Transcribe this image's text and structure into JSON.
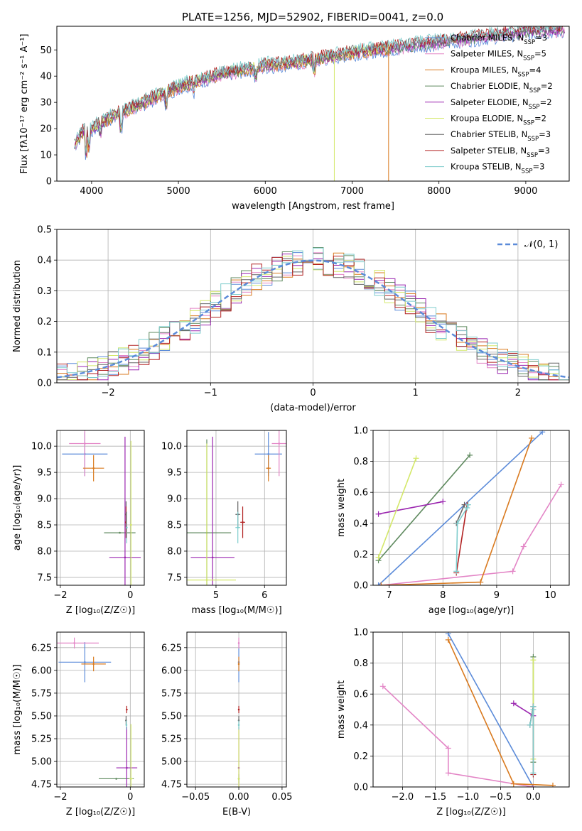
{
  "figure_title": "PLATE=1256, MJD=52902, FIBERID=0041, z=0.0",
  "series_colors": [
    "#5b8bd9",
    "#e385c6",
    "#d97a1f",
    "#5f8a5f",
    "#9b27b0",
    "#d4e86a",
    "#666666",
    "#b22222",
    "#7fcdcd"
  ],
  "chart_data": [
    {
      "id": "spectrum",
      "type": "line",
      "title": "PLATE=1256, MJD=52902, FIBERID=0041, z=0.0",
      "xlabel": "wavelength [Angstrom, rest frame]",
      "ylabel": "Flux [fλ10⁻¹⁷ erg cm⁻² s⁻¹ A⁻¹]",
      "xlim": [
        3600,
        9500
      ],
      "ylim": [
        0,
        59
      ],
      "xticks": [
        "4000",
        "5000",
        "6000",
        "7000",
        "8000",
        "9000"
      ],
      "yticks": [
        "0",
        "10",
        "20",
        "30",
        "40",
        "50"
      ],
      "grid": false,
      "legend_position": "upper-right",
      "legend": [
        "Chabrier MILES, N_SSP=3",
        "Salpeter MILES, N_SSP=5",
        "Kroupa MILES, N_SSP=4",
        "Chabrier ELODIE, N_SSP=2",
        "Salpeter ELODIE, N_SSP=2",
        "Kroupa ELODIE, N_SSP=2",
        "Chabrier STELIB, N_SSP=3",
        "Salpeter STELIB, N_SSP=3",
        "Kroupa STELIB, N_SSP=3"
      ],
      "legend_labels": [
        "Chabrier MILES, N",
        "Salpeter MILES, N",
        "Kroupa MILES, N",
        "Chabrier ELODIE, N",
        "Salpeter ELODIE, N",
        "Kroupa ELODIE, N",
        "Chabrier STELIB, N",
        "Salpeter STELIB, N",
        "Kroupa STELIB, N"
      ],
      "legend_counts": [
        "=3",
        "=5",
        "=4",
        "=2",
        "=2",
        "=2",
        "=3",
        "=3",
        "=3"
      ],
      "legend_subscript": "SSP",
      "continuum": {
        "x": [
          3800,
          3900,
          4000,
          4200,
          4400,
          4600,
          4800,
          5000,
          5200,
          5500,
          6000,
          6500,
          7000,
          7500,
          8000,
          8500,
          9000,
          9500
        ],
        "y": [
          14,
          19,
          20,
          24,
          27,
          30,
          33,
          36,
          38,
          41,
          44,
          46,
          49,
          51,
          53,
          55,
          57,
          58
        ]
      }
    },
    {
      "id": "residuals",
      "type": "histogram",
      "xlabel": "(data-model)/error",
      "ylabel": "Normed distribution",
      "xlim": [
        -2.5,
        2.5
      ],
      "ylim": [
        0,
        0.5
      ],
      "xticks": [
        "−2",
        "−1",
        "0",
        "1",
        "2"
      ],
      "yticks": [
        "0.0",
        "0.1",
        "0.2",
        "0.3",
        "0.4",
        "0.5"
      ],
      "grid": true,
      "legend_position": "upper-right",
      "legend": [
        "𝒩(0, 1)"
      ],
      "bin_width": 0.1
    },
    {
      "id": "age-vs-Z",
      "type": "scatter",
      "xlabel": "Z [log₁₀(Z/Z☉)]",
      "ylabel": "age  [log₁₀(age/yr)]",
      "xlim": [
        -2.1,
        0.4
      ],
      "ylim": [
        7.35,
        10.3
      ],
      "xticks": [
        "−2",
        "0"
      ],
      "yticks": [
        "7.5",
        "8.0",
        "8.5",
        "9.0",
        "9.5",
        "10.0"
      ],
      "grid": true,
      "points": [
        {
          "series": 0,
          "x": -1.3,
          "y": 9.85,
          "xerr": 0.65,
          "yerr": 0.42
        },
        {
          "series": 1,
          "x": -1.3,
          "y": 10.05,
          "xerr": 0.45,
          "yerr": 0.62
        },
        {
          "series": 2,
          "x": -1.05,
          "y": 9.58,
          "xerr": 0.3,
          "yerr": 0.25
        },
        {
          "series": 3,
          "x": -0.3,
          "y": 8.35,
          "xerr": 0.45,
          "yerr": 0
        },
        {
          "series": 4,
          "x": -0.15,
          "y": 7.88,
          "xerr": 0.45,
          "yerr": 2.3
        },
        {
          "series": 5,
          "x": 0.02,
          "y": 8.5,
          "xerr": 0.03,
          "yerr": 1.6
        },
        {
          "series": 6,
          "x": -0.12,
          "y": 8.7,
          "xerr": 0.02,
          "yerr": 0.25
        },
        {
          "series": 7,
          "x": -0.12,
          "y": 8.55,
          "xerr": 0.02,
          "yerr": 0.3
        },
        {
          "series": 8,
          "x": -0.1,
          "y": 8.45,
          "xerr": 0.02,
          "yerr": 0.3
        }
      ]
    },
    {
      "id": "age-vs-mass",
      "type": "scatter",
      "xlabel": "mass [log₁₀(M/M☉)]",
      "ylabel": "",
      "xlim": [
        4.4,
        6.45
      ],
      "ylim": [
        7.35,
        10.3
      ],
      "xticks": [
        "4",
        "5",
        "6"
      ],
      "yticks": [
        "7.5",
        "8.0",
        "8.5",
        "9.0",
        "9.5",
        "10.0"
      ],
      "grid": true,
      "points": [
        {
          "series": 0,
          "x": 6.08,
          "y": 9.85,
          "xerr": 0.28,
          "yerr": 0.42
        },
        {
          "series": 1,
          "x": 6.3,
          "y": 10.05,
          "xerr": 0.15,
          "yerr": 0.62
        },
        {
          "series": 2,
          "x": 6.08,
          "y": 9.58,
          "xerr": 0.05,
          "yerr": 0.25
        },
        {
          "series": 3,
          "x": 4.81,
          "y": 8.35,
          "xerr": 0.5,
          "yerr": 1.78
        },
        {
          "series": 4,
          "x": 4.93,
          "y": 7.88,
          "xerr": 0.45,
          "yerr": 2.3
        },
        {
          "series": 5,
          "x": 4.81,
          "y": 7.45,
          "xerr": 0.6,
          "yerr": 2.6
        },
        {
          "series": 6,
          "x": 5.45,
          "y": 8.7,
          "xerr": 0.05,
          "yerr": 0.25
        },
        {
          "series": 7,
          "x": 5.55,
          "y": 8.55,
          "xerr": 0.05,
          "yerr": 0.3
        },
        {
          "series": 8,
          "x": 5.45,
          "y": 8.45,
          "xerr": 0.05,
          "yerr": 0.3
        }
      ]
    },
    {
      "id": "weight-vs-age",
      "type": "line",
      "xlabel": "age  [log₁₀(age/yr)]",
      "ylabel": "mass weight",
      "xlim": [
        6.7,
        10.35
      ],
      "ylim": [
        0,
        1
      ],
      "xticks": [
        "7",
        "8",
        "9",
        "10"
      ],
      "yticks": [
        "0.0",
        "0.2",
        "0.4",
        "0.6",
        "0.8",
        "1.0"
      ],
      "grid": true,
      "series": [
        {
          "series": 0,
          "x": [
            6.8,
            9.85
          ],
          "y": [
            0.0,
            0.99
          ]
        },
        {
          "series": 1,
          "x": [
            6.85,
            9.3,
            9.5,
            10.2
          ],
          "y": [
            0.0,
            0.09,
            0.25,
            0.65
          ]
        },
        {
          "series": 2,
          "x": [
            6.85,
            8.7,
            9.65
          ],
          "y": [
            0.0,
            0.02,
            0.95
          ]
        },
        {
          "series": 3,
          "x": [
            6.8,
            8.5
          ],
          "y": [
            0.16,
            0.84
          ]
        },
        {
          "series": 4,
          "x": [
            6.8,
            8.0
          ],
          "y": [
            0.46,
            0.54
          ]
        },
        {
          "series": 5,
          "x": [
            6.8,
            7.5
          ],
          "y": [
            0.18,
            0.82
          ]
        },
        {
          "series": 6,
          "x": [
            8.25,
            8.4
          ],
          "y": [
            0.4,
            0.52
          ]
        },
        {
          "series": 7,
          "x": [
            8.25,
            8.45
          ],
          "y": [
            0.08,
            0.52
          ]
        },
        {
          "series": 8,
          "x": [
            8.25,
            8.27,
            8.45,
            8.47
          ],
          "y": [
            0.09,
            0.4,
            0.5,
            0.52
          ]
        }
      ]
    },
    {
      "id": "mass-vs-Z",
      "type": "scatter",
      "xlabel": "Z [log₁₀(Z/Z☉)]",
      "ylabel": "mass [log₁₀(M/M☉)]",
      "xlim": [
        -2.1,
        0.4
      ],
      "ylim": [
        4.72,
        6.42
      ],
      "xticks": [
        "−2",
        "0"
      ],
      "yticks": [
        "4.75",
        "5.00",
        "5.25",
        "5.50",
        "5.75",
        "6.00",
        "6.25"
      ],
      "grid": true,
      "points": [
        {
          "series": 0,
          "x": -1.3,
          "y": 6.09,
          "xerr": 0.75,
          "yerr": 0.22
        },
        {
          "series": 1,
          "x": -1.6,
          "y": 6.3,
          "xerr": 0.7,
          "yerr": 0.06
        },
        {
          "series": 2,
          "x": -1.05,
          "y": 6.07,
          "xerr": 0.35,
          "yerr": 0.08
        },
        {
          "series": 3,
          "x": -0.4,
          "y": 4.81,
          "xerr": 0.5,
          "yerr": 0
        },
        {
          "series": 4,
          "x": -0.1,
          "y": 4.93,
          "xerr": 0.3,
          "yerr": 0.45
        },
        {
          "series": 5,
          "x": 0.02,
          "y": 4.81,
          "xerr": 0.05,
          "yerr": 0.6
        },
        {
          "series": 6,
          "x": -0.12,
          "y": 5.45,
          "xerr": 0.02,
          "yerr": 0.05
        },
        {
          "series": 7,
          "x": -0.1,
          "y": 5.57,
          "xerr": 0.02,
          "yerr": 0.04
        },
        {
          "series": 8,
          "x": -0.11,
          "y": 5.4,
          "xerr": 0.02,
          "yerr": 0.05
        }
      ]
    },
    {
      "id": "mass-vs-ebv",
      "type": "scatter",
      "xlabel": "E(B-V)",
      "ylabel": "",
      "xlim": [
        -0.06,
        0.055
      ],
      "ylim": [
        4.72,
        6.42
      ],
      "xticks": [
        "−0.05",
        "0.00",
        "0.05"
      ],
      "yticks": [
        "4.75",
        "5.00",
        "5.25",
        "5.50",
        "5.75",
        "6.00",
        "6.25"
      ],
      "grid": true,
      "points": [
        {
          "series": 0,
          "x": 0,
          "y": 6.09,
          "xerr": 0,
          "yerr": 0.22
        },
        {
          "series": 1,
          "x": 0,
          "y": 6.3,
          "xerr": 0,
          "yerr": 0.06
        },
        {
          "series": 2,
          "x": 0,
          "y": 6.07,
          "xerr": 0,
          "yerr": 0.08
        },
        {
          "series": 3,
          "x": 0,
          "y": 4.81,
          "xerr": 0,
          "yerr": 0.05
        },
        {
          "series": 4,
          "x": 0,
          "y": 4.93,
          "xerr": 0,
          "yerr": 0.45
        },
        {
          "series": 5,
          "x": 0,
          "y": 4.81,
          "xerr": 0,
          "yerr": 0.6
        },
        {
          "series": 6,
          "x": 0,
          "y": 5.45,
          "xerr": 0,
          "yerr": 0.05
        },
        {
          "series": 7,
          "x": 0,
          "y": 5.57,
          "xerr": 0,
          "yerr": 0.04
        },
        {
          "series": 8,
          "x": 0,
          "y": 5.4,
          "xerr": 0,
          "yerr": 0.05
        }
      ]
    },
    {
      "id": "weight-vs-Z",
      "type": "line",
      "xlabel": "Z [log₁₀(Z/Z☉)]",
      "ylabel": "mass weight",
      "xlim": [
        -2.45,
        0.55
      ],
      "ylim": [
        0,
        1
      ],
      "xticks": [
        "−2.0",
        "−1.5",
        "−1.0",
        "−0.5",
        "0.0"
      ],
      "yticks": [
        "0.0",
        "0.2",
        "0.4",
        "0.6",
        "0.8",
        "1.0"
      ],
      "grid": true,
      "series": [
        {
          "series": 0,
          "x": [
            -1.3,
            0.0
          ],
          "y": [
            0.99,
            0.0
          ]
        },
        {
          "series": 1,
          "x": [
            -2.3,
            -1.3,
            -1.3,
            0.0
          ],
          "y": [
            0.65,
            0.25,
            0.09,
            0.0
          ]
        },
        {
          "series": 2,
          "x": [
            -1.3,
            -0.3,
            0.3
          ],
          "y": [
            0.95,
            0.02,
            0.01
          ]
        },
        {
          "series": 3,
          "x": [
            0.0,
            0.0
          ],
          "y": [
            0.84,
            0.16
          ]
        },
        {
          "series": 4,
          "x": [
            -0.3,
            0.0
          ],
          "y": [
            0.54,
            0.46
          ]
        },
        {
          "series": 5,
          "x": [
            0.0,
            0.0
          ],
          "y": [
            0.82,
            0.18
          ]
        },
        {
          "series": 6,
          "x": [
            -0.05,
            0.0
          ],
          "y": [
            0.4,
            0.52
          ]
        },
        {
          "series": 7,
          "x": [
            0.0,
            0.0
          ],
          "y": [
            0.08,
            0.52
          ]
        },
        {
          "series": 8,
          "x": [
            -0.05,
            0.0,
            0.0,
            0.0
          ],
          "y": [
            0.4,
            0.5,
            0.52,
            0.09
          ]
        }
      ]
    }
  ]
}
